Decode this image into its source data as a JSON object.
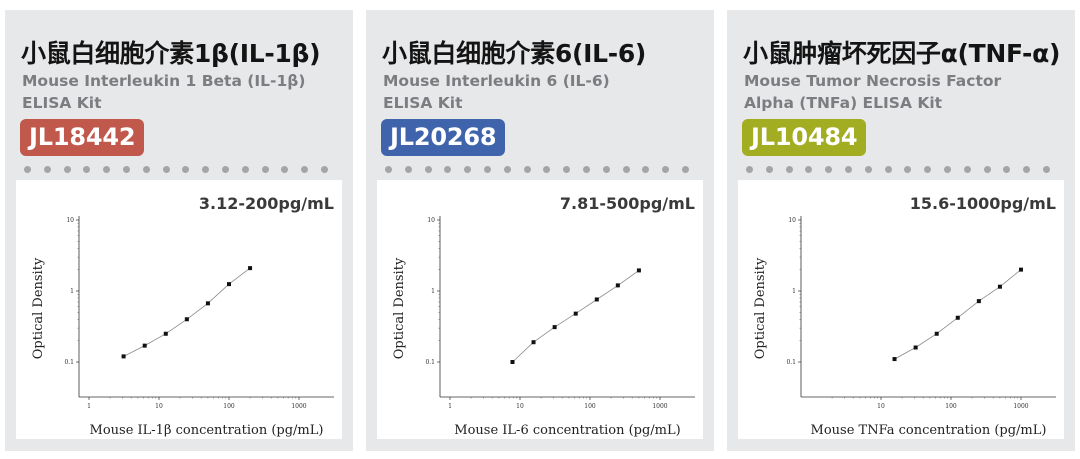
{
  "cards": [
    {
      "title": "小鼠白细胞介素1β(IL-1β)",
      "subtitle_line1": "Mouse Interleukin 1 Beta (IL-1β)",
      "subtitle_line2": "ELISA Kit",
      "badge": "JL18442",
      "badge_color": "#c0584b",
      "range": "3.12-200pg/mL"
    },
    {
      "title": "小鼠白细胞介素6(IL-6)",
      "subtitle_line1": "Mouse Interleukin 6 (IL-6)",
      "subtitle_line2": "ELISA Kit",
      "badge": "JL20268",
      "badge_color": "#3f64ac",
      "range": "7.81-500pg/mL"
    },
    {
      "title": "小鼠肿瘤坏死因子α(TNF-α)",
      "subtitle_line1": "Mouse Tumor Necrosis Factor",
      "subtitle_line2": "Alpha (TNFa) ELISA Kit",
      "badge": "JL10484",
      "badge_color": "#a3ad22",
      "range": "15.6-1000pg/mL"
    }
  ],
  "chart_data": [
    {
      "type": "line",
      "xlabel": "Mouse IL-1β concentration (pg/mL)",
      "ylabel": "Optical Density",
      "x_scale": "log",
      "y_scale": "log",
      "xlim": [
        1,
        1000
      ],
      "ylim": [
        0.1,
        10
      ],
      "x_ticks": [
        "1",
        "10",
        "100",
        "1000"
      ],
      "y_ticks": [
        "10",
        "1",
        "0.1"
      ],
      "x": [
        3.12,
        6.25,
        12.5,
        25,
        50,
        100,
        200
      ],
      "y": [
        0.12,
        0.17,
        0.25,
        0.4,
        0.67,
        1.25,
        2.1
      ],
      "grid": false
    },
    {
      "type": "line",
      "xlabel": "Mouse IL-6 concentration (pg/mL)",
      "ylabel": "Optical Density",
      "x_scale": "log",
      "y_scale": "log",
      "xlim": [
        1,
        1000
      ],
      "ylim": [
        0.1,
        10
      ],
      "x_ticks": [
        "1",
        "10",
        "100",
        "1000"
      ],
      "y_ticks": [
        "10",
        "1",
        "0.1"
      ],
      "x": [
        7.81,
        15.6,
        31.25,
        62.5,
        125,
        250,
        500
      ],
      "y": [
        0.1,
        0.19,
        0.31,
        0.48,
        0.76,
        1.2,
        1.95
      ],
      "grid": false
    },
    {
      "type": "line",
      "xlabel": "Mouse TNFa concentration (pg/mL)",
      "ylabel": "Optical Density",
      "x_scale": "log",
      "y_scale": "log",
      "xlim": [
        1,
        1000
      ],
      "ylim": [
        0.1,
        10
      ],
      "x_ticks": [
        "10",
        "100",
        "1000"
      ],
      "y_ticks": [
        "10",
        "1",
        "0.1"
      ],
      "x": [
        15.6,
        31.25,
        62.5,
        125,
        250,
        500,
        1000
      ],
      "y": [
        0.11,
        0.16,
        0.25,
        0.42,
        0.72,
        1.15,
        2.0
      ],
      "grid": false
    }
  ]
}
